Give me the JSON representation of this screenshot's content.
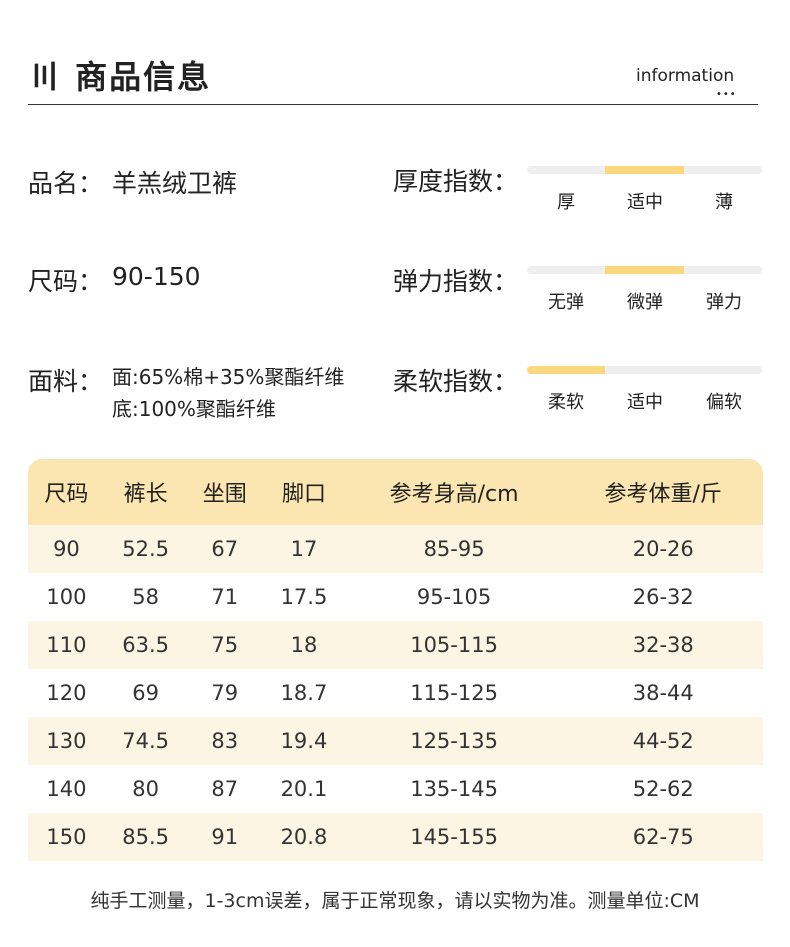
{
  "header": {
    "title": "〣 商品信息",
    "subtitle": "information",
    "dots": "•••"
  },
  "info": [
    {
      "label": "品名：",
      "value": "羊羔绒卫裤"
    },
    {
      "label": "尺码：",
      "value": "90-150"
    }
  ],
  "fabric": {
    "label": "面料：",
    "lines": [
      "面:65%棉+35%聚酯纤维",
      "底:100%聚酯纤维"
    ]
  },
  "indices": [
    {
      "label": "厚度指数：",
      "levels": [
        "厚",
        "适中",
        "薄"
      ],
      "selected": 1
    },
    {
      "label": "弹力指数：",
      "levels": [
        "无弹",
        "微弹",
        "弹力"
      ],
      "selected": 1
    },
    {
      "label": "柔软指数：",
      "levels": [
        "柔软",
        "适中",
        "偏软"
      ],
      "selected": 0
    }
  ],
  "table": {
    "headers": [
      "尺码",
      "裤长",
      "坐围",
      "脚口",
      "参考身高/cm",
      "参考体重/斤"
    ],
    "rows": [
      [
        "90",
        "52.5",
        "67",
        "17",
        "85-95",
        "20-26"
      ],
      [
        "100",
        "58",
        "71",
        "17.5",
        "95-105",
        "26-32"
      ],
      [
        "110",
        "63.5",
        "75",
        "18",
        "105-115",
        "32-38"
      ],
      [
        "120",
        "69",
        "79",
        "18.7",
        "115-125",
        "38-44"
      ],
      [
        "130",
        "74.5",
        "83",
        "19.4",
        "125-135",
        "44-52"
      ],
      [
        "140",
        "80",
        "87",
        "20.1",
        "135-145",
        "52-62"
      ],
      [
        "150",
        "85.5",
        "91",
        "20.8",
        "145-155",
        "62-75"
      ]
    ]
  },
  "note": "纯手工测量，1-3cm误差，属于正常现象，请以实物为准。测量单位:CM"
}
